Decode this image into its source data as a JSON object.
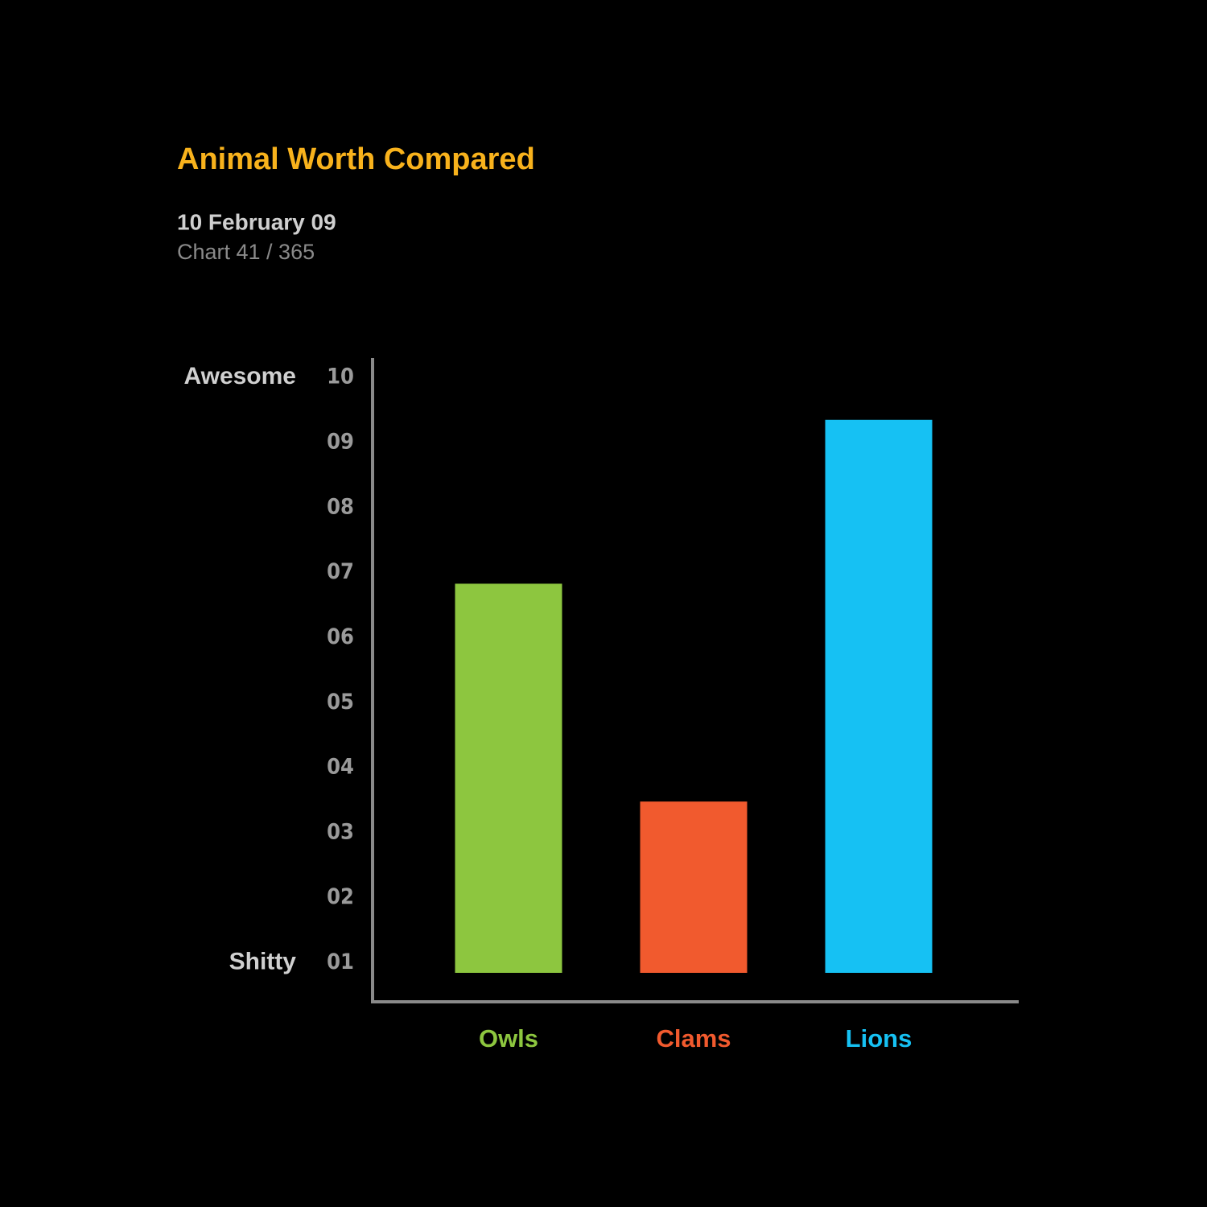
{
  "chart_data": {
    "type": "bar",
    "title": "Animal Worth Compared",
    "date": "10 February 09",
    "chart_number": "Chart 41 / 365",
    "categories": [
      "Owls",
      "Clams",
      "Lions"
    ],
    "values": [
      6.83,
      3.48,
      9.35
    ],
    "colors": [
      "#8dc63f",
      "#f15a2e",
      "#16c1f3"
    ],
    "title_color": "#f8b21c",
    "ylim": [
      0.4,
      10.3
    ],
    "yticks": [
      10,
      {
        "value": 9,
        "label": "09"
      },
      {
        "value": 8,
        "label": "08"
      },
      {
        "value": 7,
        "label": "07"
      },
      {
        "value": 6,
        "label": "06"
      },
      {
        "value": 5,
        "label": "05"
      },
      {
        "value": 4,
        "label": "04"
      },
      {
        "value": 3,
        "label": "03"
      },
      {
        "value": 2,
        "label": "02"
      },
      {
        "value": 1,
        "label": "01"
      }
    ],
    "annotations": [
      "Awesome",
      "Shitty"
    ],
    "grid": false
  }
}
